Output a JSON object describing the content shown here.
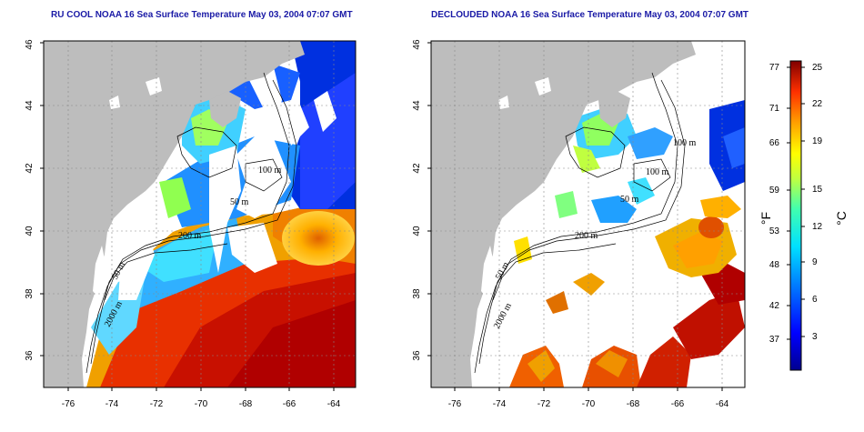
{
  "titles": {
    "left": "RU COOL NOAA 16 Sea Surface Temperature May 03, 2004 07:07 GMT",
    "right": "DECLOUDED NOAA 16 Sea Surface Temperature May 03, 2004 07:07 GMT"
  },
  "axes": {
    "x_ticks": [
      "-76",
      "-74",
      "-72",
      "-70",
      "-68",
      "-66",
      "-64"
    ],
    "y_ticks": [
      "36",
      "38",
      "40",
      "42",
      "44",
      "46"
    ]
  },
  "contour_labels": {
    "left": [
      "100 m",
      "200 m",
      "50 m",
      "2000 m",
      "50 m"
    ],
    "right": [
      "100 m",
      "100 m",
      "50 m",
      "200 m",
      "50 m",
      "2000 m"
    ]
  },
  "colorbar": {
    "fahrenheit_ticks": [
      "77",
      "71",
      "66",
      "59",
      "53",
      "48",
      "42",
      "37"
    ],
    "celsius_ticks": [
      "25",
      "22",
      "19",
      "15",
      "12",
      "9",
      "6",
      "3"
    ],
    "unit_f": "°F",
    "unit_c": "°C"
  },
  "colors": {
    "land": "#bdbdbd",
    "title": "#1a1aa6",
    "background": "#ffffff"
  }
}
